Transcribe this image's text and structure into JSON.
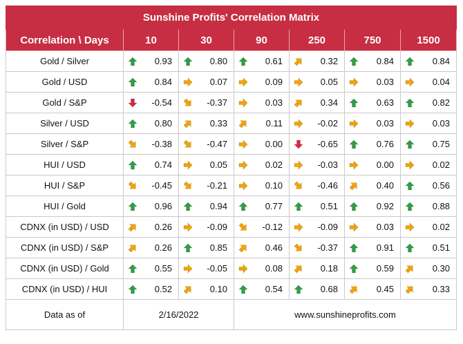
{
  "title": "Sunshine Profits' Correlation Matrix",
  "header": {
    "corner": "Correlation \\ Days",
    "days": [
      "10",
      "30",
      "90",
      "250",
      "750",
      "1500"
    ]
  },
  "rows": [
    {
      "label": "Gold / Silver",
      "cells": [
        {
          "v": "0.93",
          "t": "up"
        },
        {
          "v": "0.80",
          "t": "up"
        },
        {
          "v": "0.61",
          "t": "up"
        },
        {
          "v": "0.32",
          "t": "upright"
        },
        {
          "v": "0.84",
          "t": "up"
        },
        {
          "v": "0.84",
          "t": "up"
        }
      ]
    },
    {
      "label": "Gold / USD",
      "cells": [
        {
          "v": "0.84",
          "t": "up"
        },
        {
          "v": "0.07",
          "t": "right"
        },
        {
          "v": "0.09",
          "t": "right"
        },
        {
          "v": "0.05",
          "t": "right"
        },
        {
          "v": "0.03",
          "t": "right"
        },
        {
          "v": "0.04",
          "t": "right"
        }
      ]
    },
    {
      "label": "Gold / S&P",
      "cells": [
        {
          "v": "-0.54",
          "t": "down"
        },
        {
          "v": "-0.37",
          "t": "downright"
        },
        {
          "v": "0.03",
          "t": "right"
        },
        {
          "v": "0.34",
          "t": "upright"
        },
        {
          "v": "0.63",
          "t": "up"
        },
        {
          "v": "0.82",
          "t": "up"
        }
      ]
    },
    {
      "label": "Silver / USD",
      "cells": [
        {
          "v": "0.80",
          "t": "up"
        },
        {
          "v": "0.33",
          "t": "upright"
        },
        {
          "v": "0.11",
          "t": "upright"
        },
        {
          "v": "-0.02",
          "t": "right"
        },
        {
          "v": "0.03",
          "t": "right"
        },
        {
          "v": "0.03",
          "t": "right"
        }
      ]
    },
    {
      "label": "Silver / S&P",
      "cells": [
        {
          "v": "-0.38",
          "t": "downright"
        },
        {
          "v": "-0.47",
          "t": "downright"
        },
        {
          "v": "0.00",
          "t": "right"
        },
        {
          "v": "-0.65",
          "t": "down"
        },
        {
          "v": "0.76",
          "t": "up"
        },
        {
          "v": "0.75",
          "t": "up"
        }
      ]
    },
    {
      "label": "HUI / USD",
      "cells": [
        {
          "v": "0.74",
          "t": "up"
        },
        {
          "v": "0.05",
          "t": "right"
        },
        {
          "v": "0.02",
          "t": "right"
        },
        {
          "v": "-0.03",
          "t": "right"
        },
        {
          "v": "0.00",
          "t": "right"
        },
        {
          "v": "0.02",
          "t": "right"
        }
      ]
    },
    {
      "label": "HUI / S&P",
      "cells": [
        {
          "v": "-0.45",
          "t": "downright"
        },
        {
          "v": "-0.21",
          "t": "downright"
        },
        {
          "v": "0.10",
          "t": "right"
        },
        {
          "v": "-0.46",
          "t": "downright"
        },
        {
          "v": "0.40",
          "t": "upright"
        },
        {
          "v": "0.56",
          "t": "up"
        }
      ]
    },
    {
      "label": "HUI / Gold",
      "cells": [
        {
          "v": "0.96",
          "t": "up"
        },
        {
          "v": "0.94",
          "t": "up"
        },
        {
          "v": "0.77",
          "t": "up"
        },
        {
          "v": "0.51",
          "t": "up"
        },
        {
          "v": "0.92",
          "t": "up"
        },
        {
          "v": "0.88",
          "t": "up"
        }
      ]
    },
    {
      "label": "CDNX (in USD) / USD",
      "cells": [
        {
          "v": "0.26",
          "t": "upright"
        },
        {
          "v": "-0.09",
          "t": "right"
        },
        {
          "v": "-0.12",
          "t": "downright"
        },
        {
          "v": "-0.09",
          "t": "right"
        },
        {
          "v": "0.03",
          "t": "right"
        },
        {
          "v": "0.02",
          "t": "right"
        }
      ]
    },
    {
      "label": "CDNX (in USD) / S&P",
      "cells": [
        {
          "v": "0.26",
          "t": "upright"
        },
        {
          "v": "0.85",
          "t": "up"
        },
        {
          "v": "0.46",
          "t": "upright"
        },
        {
          "v": "-0.37",
          "t": "downright"
        },
        {
          "v": "0.91",
          "t": "up"
        },
        {
          "v": "0.51",
          "t": "up"
        }
      ]
    },
    {
      "label": "CDNX (in USD) / Gold",
      "cells": [
        {
          "v": "0.55",
          "t": "up"
        },
        {
          "v": "-0.05",
          "t": "right"
        },
        {
          "v": "0.08",
          "t": "right"
        },
        {
          "v": "0.18",
          "t": "upright"
        },
        {
          "v": "0.59",
          "t": "up"
        },
        {
          "v": "0.30",
          "t": "upright"
        }
      ]
    },
    {
      "label": "CDNX (in USD) / HUI",
      "cells": [
        {
          "v": "0.52",
          "t": "up"
        },
        {
          "v": "0.10",
          "t": "upright"
        },
        {
          "v": "0.54",
          "t": "up"
        },
        {
          "v": "0.68",
          "t": "up"
        },
        {
          "v": "0.45",
          "t": "upright"
        },
        {
          "v": "0.33",
          "t": "upright"
        }
      ]
    }
  ],
  "footer": {
    "label": "Data as of",
    "date": "2/16/2022",
    "site": "www.sunshineprofits.com"
  },
  "colors": {
    "header_bg": "#c72e43",
    "up": "#2f9e44",
    "down": "#d7263d",
    "side": "#f4a300"
  },
  "icons": {
    "up": "arrow-up-icon",
    "down": "arrow-down-icon",
    "right": "arrow-right-icon",
    "upright": "arrow-up-right-icon",
    "downright": "arrow-down-right-icon"
  }
}
